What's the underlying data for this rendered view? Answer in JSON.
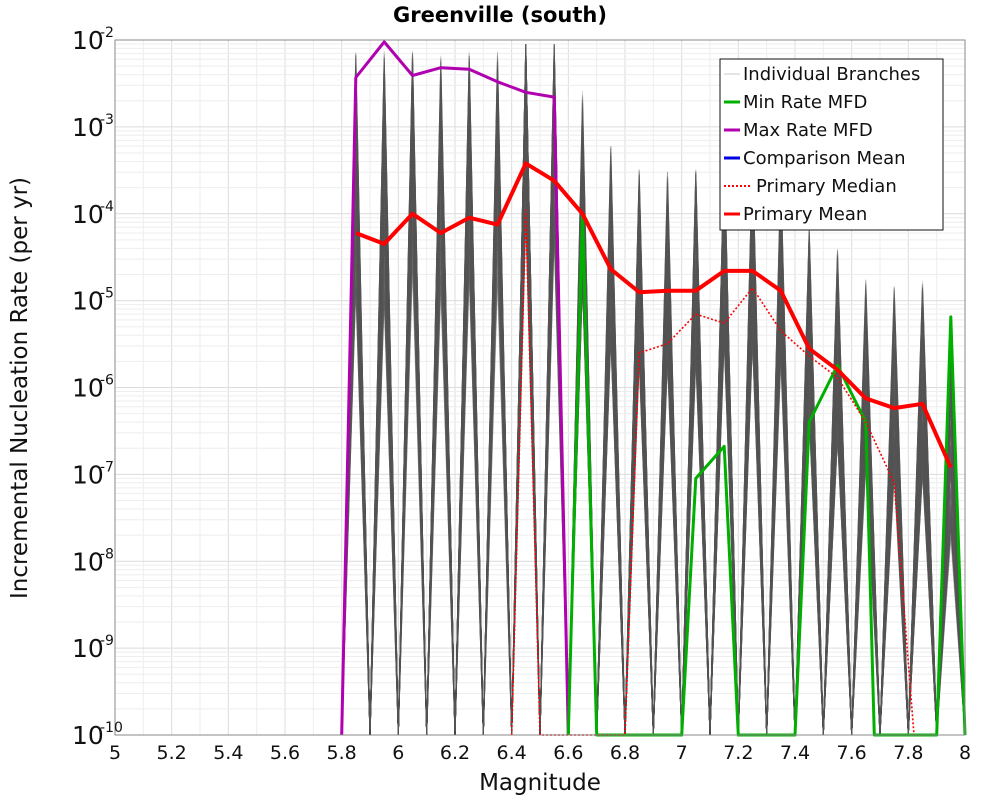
{
  "chart_data": {
    "type": "line",
    "title": "Greenville (south)",
    "xlabel": "Magnitude",
    "ylabel": "Incremental Nucleation Rate (per yr)",
    "xlim": [
      5,
      8
    ],
    "ylim": [
      1e-10,
      0.01
    ],
    "y_scale": "log",
    "grid": true,
    "legend_position": "top-right",
    "x_tick_labels": [
      "5",
      "5.2",
      "5.4",
      "5.6",
      "5.8",
      "6",
      "6.2",
      "6.4",
      "6.6",
      "6.8",
      "7",
      "7.2",
      "7.4",
      "7.6",
      "7.8",
      "8"
    ],
    "y_tick_labels": [
      {
        "base": "10",
        "exp": "-10"
      },
      {
        "base": "10",
        "exp": "-9"
      },
      {
        "base": "10",
        "exp": "-8"
      },
      {
        "base": "10",
        "exp": "-7"
      },
      {
        "base": "10",
        "exp": "-6"
      },
      {
        "base": "10",
        "exp": "-5"
      },
      {
        "base": "10",
        "exp": "-4"
      },
      {
        "base": "10",
        "exp": "-3"
      },
      {
        "base": "10",
        "exp": "-2"
      }
    ],
    "legend": [
      {
        "label": "Individual Branches",
        "color": "#c8c8c8",
        "style": "solid"
      },
      {
        "label": "Min Rate MFD",
        "color": "#00b000",
        "style": "solid"
      },
      {
        "label": "Max Rate MFD",
        "color": "#b000b0",
        "style": "solid"
      },
      {
        "label": "Comparison Mean",
        "color": "#0000e0",
        "style": "solid"
      },
      {
        "label": "Primary Median",
        "color": "#ff0000",
        "style": "dotted"
      },
      {
        "label": "Primary Mean",
        "color": "#ff0000",
        "style": "solid"
      }
    ],
    "series": [
      {
        "name": "Primary Mean",
        "color": "#ff0000",
        "x": [
          5.85,
          5.95,
          6.05,
          6.15,
          6.25,
          6.35,
          6.45,
          6.55,
          6.65,
          6.75,
          6.85,
          6.95,
          7.05,
          7.15,
          7.25,
          7.35,
          7.45,
          7.55,
          7.65,
          7.75,
          7.85,
          7.95
        ],
        "y": [
          6e-05,
          4.5e-05,
          0.0001,
          6e-05,
          9e-05,
          7.5e-05,
          0.00038,
          0.00024,
          0.0001,
          2.3e-05,
          1.25e-05,
          1.3e-05,
          1.3e-05,
          2.2e-05,
          2.2e-05,
          1.3e-05,
          2.8e-06,
          1.6e-06,
          7.5e-07,
          5.8e-07,
          6.5e-07,
          1.2e-07
        ]
      },
      {
        "name": "Primary Median",
        "color": "#ff0000",
        "x": [
          6.4,
          6.45,
          6.5,
          6.8,
          6.85,
          6.95,
          7.05,
          7.15,
          7.25,
          7.35,
          7.45,
          7.55,
          7.65,
          7.75,
          7.82
        ],
        "y": [
          1e-10,
          0.00011,
          1e-10,
          1e-10,
          2.5e-06,
          3.2e-06,
          7e-06,
          5.5e-06,
          1.4e-05,
          4.5e-06,
          2.3e-06,
          1.3e-06,
          4e-07,
          8e-08,
          1e-10
        ]
      },
      {
        "name": "Min Rate MFD",
        "color": "#00b000",
        "x": [
          6.6,
          6.65,
          6.7,
          7.0,
          7.05,
          7.15,
          7.2,
          7.4,
          7.45,
          7.55,
          7.65,
          7.68,
          7.9,
          7.95,
          8.0
        ],
        "y": [
          1e-10,
          0.0001,
          1e-10,
          1e-10,
          9e-08,
          2.1e-07,
          1e-10,
          1e-10,
          4e-07,
          1.8e-06,
          4e-07,
          1e-10,
          1e-10,
          6.5e-06,
          1e-10
        ]
      },
      {
        "name": "Max Rate MFD",
        "color": "#b000b0",
        "x": [
          5.8,
          5.85,
          5.95,
          6.05,
          6.15,
          6.25,
          6.35,
          6.45,
          6.55,
          6.6
        ],
        "y": [
          1e-10,
          0.0037,
          0.0095,
          0.0039,
          0.0048,
          0.0046,
          0.0033,
          0.0025,
          0.0022,
          1e-10
        ]
      }
    ]
  }
}
